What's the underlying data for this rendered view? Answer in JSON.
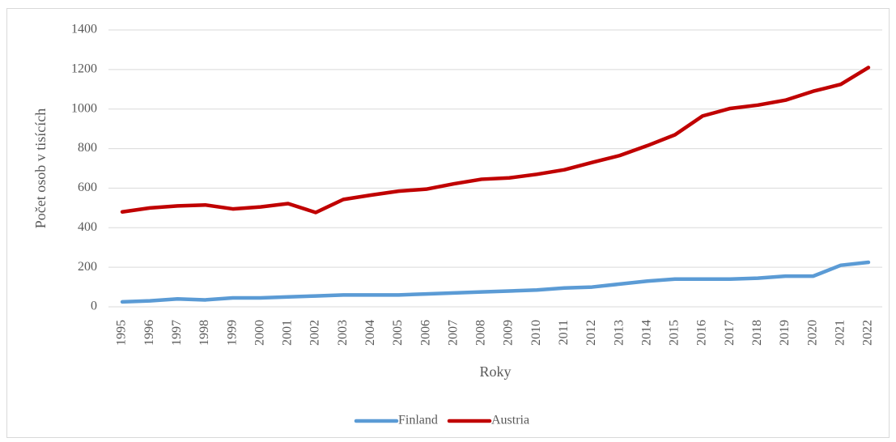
{
  "chart_data": {
    "type": "line",
    "y_label": "Počet osob v tisících",
    "x_label": "Roky",
    "categories": [
      "1995",
      "1996",
      "1997",
      "1998",
      "1999",
      "2000",
      "2001",
      "2002",
      "2003",
      "2004",
      "2005",
      "2006",
      "2007",
      "2008",
      "2009",
      "2010",
      "2011",
      "2012",
      "2013",
      "2014",
      "2015",
      "2016",
      "2017",
      "2018",
      "2019",
      "2020",
      "2021",
      "2022"
    ],
    "series": [
      {
        "name": "Finland",
        "color": "#5b9bd5",
        "values": [
          25,
          30,
          40,
          35,
          45,
          45,
          50,
          55,
          60,
          60,
          60,
          65,
          70,
          75,
          80,
          85,
          95,
          100,
          115,
          130,
          140,
          140,
          140,
          145,
          155,
          155,
          210,
          225
        ]
      },
      {
        "name": "Austria",
        "color": "#c00000",
        "values": [
          480,
          500,
          510,
          515,
          495,
          505,
          522,
          477,
          543,
          565,
          585,
          595,
          622,
          645,
          652,
          670,
          693,
          730,
          765,
          815,
          870,
          965,
          1003,
          1020,
          1045,
          1090,
          1125,
          1210
        ]
      }
    ],
    "ylim": [
      0,
      1400
    ],
    "yticks": [
      0,
      200,
      400,
      600,
      800,
      1000,
      1200,
      1400
    ],
    "grid": true,
    "legend": "bottom"
  }
}
